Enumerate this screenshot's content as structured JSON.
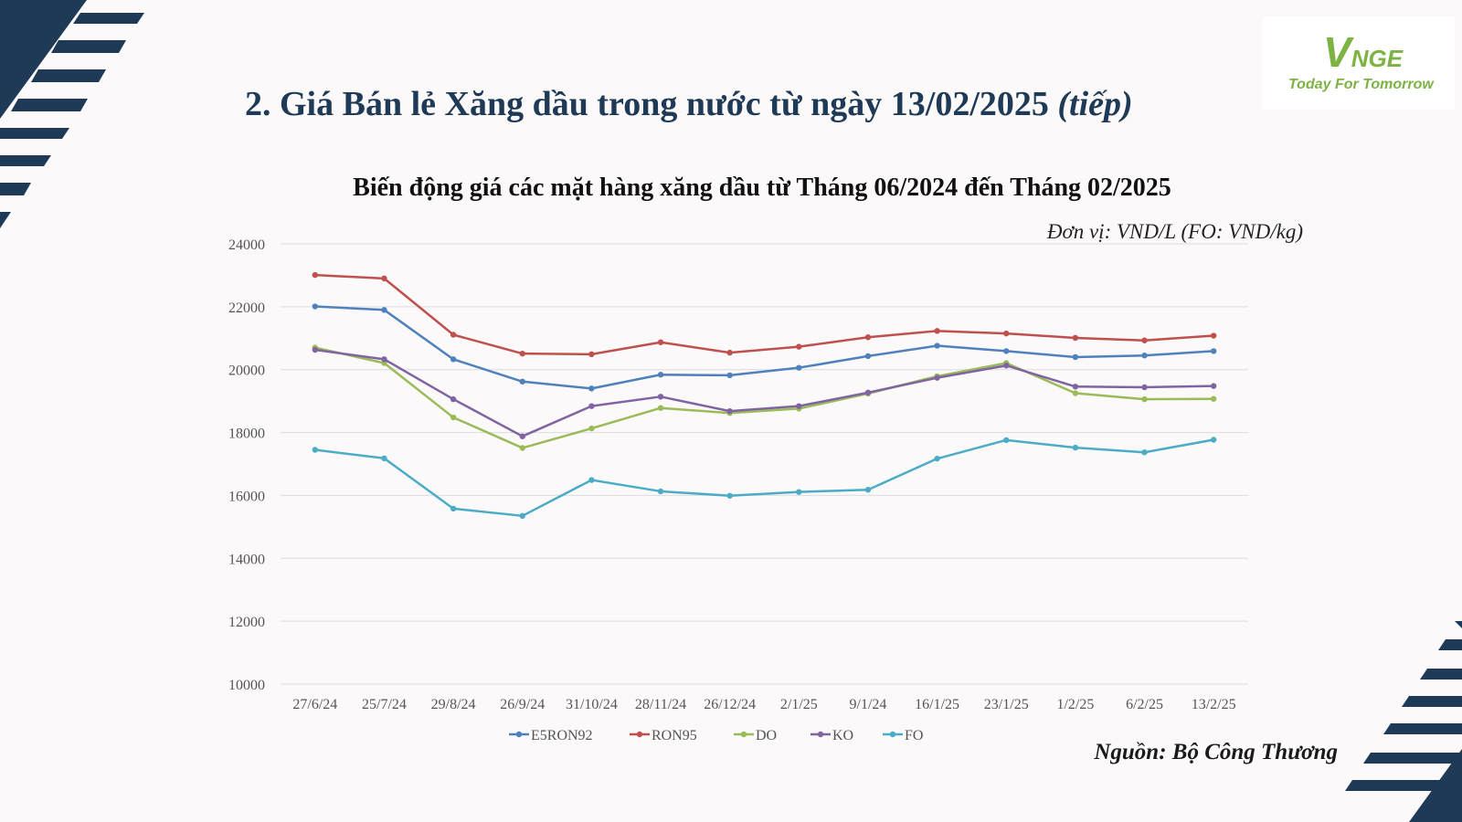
{
  "slide": {
    "title_main": "2. Giá Bán lẻ Xăng dầu trong nước từ ngày 13/02/2025",
    "title_suffix": "(tiếp)",
    "source": "Nguồn: Bộ Công Thương"
  },
  "logo": {
    "mark_v": "V",
    "mark_rest": "NGE",
    "tagline": "Today For Tomorrow",
    "color": "#7cb342"
  },
  "colors": {
    "navy": "#1f3a56",
    "background": "#fbf9fa"
  },
  "chart_data": {
    "type": "line",
    "title": "Biến động giá các mặt hàng xăng dầu từ Tháng 06/2024 đến Tháng 02/2025",
    "unit_note": "Đơn vị: VND/L (FO: VND/kg)",
    "categories": [
      "27/6/24",
      "25/7/24",
      "29/8/24",
      "26/9/24",
      "31/10/24",
      "28/11/24",
      "26/12/24",
      "2/1/25",
      "9/1/24",
      "16/1/25",
      "23/1/25",
      "1/2/25",
      "6/2/25",
      "13/2/25"
    ],
    "ylim": [
      10000,
      24000
    ],
    "yticks": [
      10000,
      12000,
      14000,
      16000,
      18000,
      20000,
      22000,
      24000
    ],
    "grid": true,
    "legend_position": "bottom",
    "series": [
      {
        "name": "E5RON92",
        "color": "#4f81bd",
        "values": [
          22010,
          21900,
          20330,
          19620,
          19400,
          19840,
          19820,
          20060,
          20430,
          20760,
          20590,
          20400,
          20450,
          20590
        ]
      },
      {
        "name": "RON95",
        "color": "#c0504d",
        "values": [
          23010,
          22900,
          21110,
          20510,
          20490,
          20870,
          20540,
          20730,
          21030,
          21230,
          21150,
          21010,
          20930,
          21080
        ]
      },
      {
        "name": "DO",
        "color": "#9bbb59",
        "values": [
          20700,
          20210,
          18480,
          17510,
          18130,
          18780,
          18620,
          18760,
          19240,
          19790,
          20210,
          19250,
          19060,
          19070
        ]
      },
      {
        "name": "KO",
        "color": "#8064a2",
        "values": [
          20630,
          20330,
          19060,
          17880,
          18840,
          19140,
          18680,
          18840,
          19270,
          19740,
          20130,
          19460,
          19440,
          19480
        ]
      },
      {
        "name": "FO",
        "color": "#4bacc6",
        "values": [
          17450,
          17180,
          15580,
          15350,
          16490,
          16130,
          15990,
          16110,
          16180,
          17170,
          17760,
          17520,
          17370,
          17770
        ]
      }
    ]
  }
}
